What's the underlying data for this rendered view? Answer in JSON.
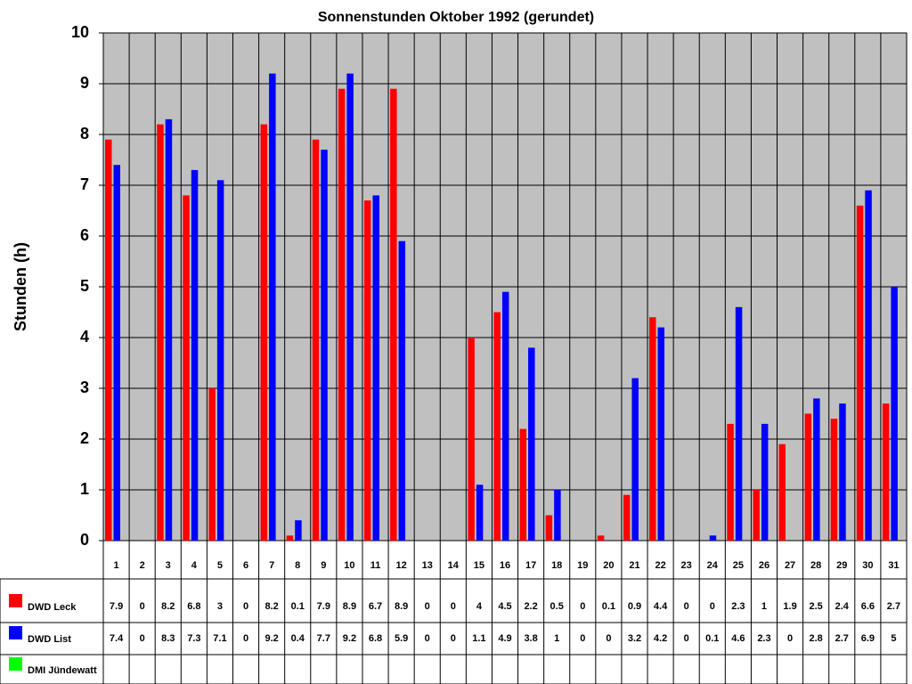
{
  "chart_data": {
    "type": "bar",
    "title": "Sonnenstunden Oktober 1992 (gerundet)",
    "y_label": "Stunden (h)",
    "categories": [
      "1",
      "2",
      "3",
      "4",
      "5",
      "6",
      "7",
      "8",
      "9",
      "10",
      "11",
      "12",
      "13",
      "14",
      "15",
      "16",
      "17",
      "18",
      "19",
      "20",
      "21",
      "22",
      "23",
      "24",
      "25",
      "26",
      "27",
      "28",
      "29",
      "30",
      "31"
    ],
    "series": [
      {
        "name": "DWD Leck",
        "color": "#ff0000",
        "values": [
          7.9,
          0,
          8.2,
          6.8,
          3,
          0,
          8.2,
          0.1,
          7.9,
          8.9,
          6.7,
          8.9,
          0,
          0,
          4,
          4.5,
          2.2,
          0.5,
          0,
          0.1,
          0.9,
          4.4,
          0,
          0,
          2.3,
          1,
          1.9,
          2.5,
          2.4,
          6.6,
          2.7
        ]
      },
      {
        "name": "DWD List",
        "color": "#0000ff",
        "values": [
          7.4,
          0,
          8.3,
          7.3,
          7.1,
          0,
          9.2,
          0.4,
          7.7,
          9.2,
          6.8,
          5.9,
          0,
          0,
          1.1,
          4.9,
          3.8,
          1,
          0,
          0,
          3.2,
          4.2,
          0,
          0.1,
          4.6,
          2.3,
          0,
          2.8,
          2.7,
          6.9,
          5
        ]
      },
      {
        "name": "DMI Jündewatt",
        "color": "#00ff00",
        "values": [
          null,
          null,
          null,
          null,
          null,
          null,
          null,
          null,
          null,
          null,
          null,
          null,
          null,
          null,
          null,
          null,
          null,
          null,
          null,
          null,
          null,
          null,
          null,
          null,
          null,
          null,
          null,
          null,
          null,
          null,
          null
        ]
      }
    ],
    "ylim": [
      0,
      10
    ],
    "yticks": [
      0,
      1,
      2,
      3,
      4,
      5,
      6,
      7,
      8,
      9,
      10
    ],
    "grid": true,
    "data_table": true
  }
}
